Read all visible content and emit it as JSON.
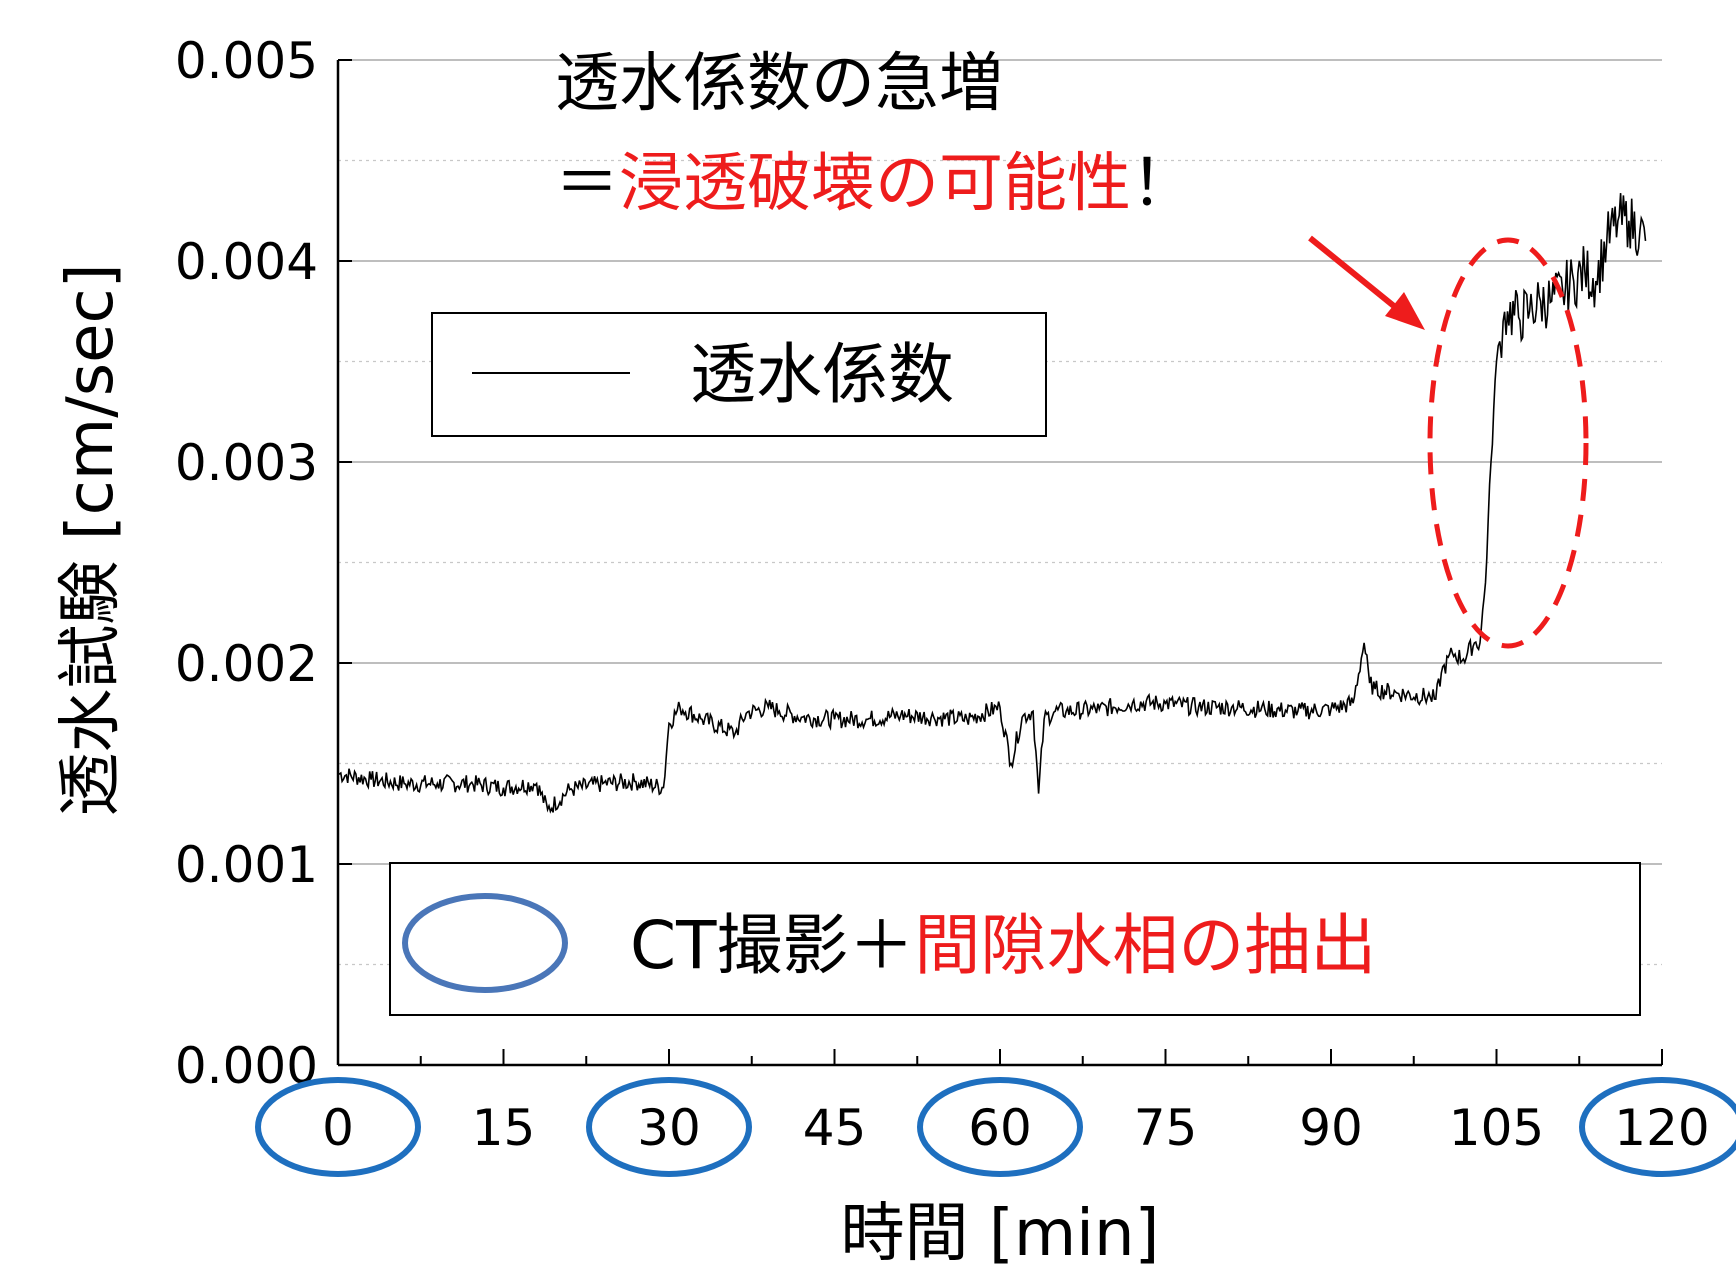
{
  "chart_data": {
    "type": "line",
    "xlabel": "時間 [min]",
    "ylabel": "透水試験 [cm/sec]",
    "xlim": [
      0,
      120
    ],
    "ylim": [
      0,
      0.005
    ],
    "x_ticks": [
      "0",
      "15",
      "30",
      "45",
      "60",
      "75",
      "90",
      "105",
      "120"
    ],
    "y_ticks": [
      "0.000",
      "0.001",
      "0.002",
      "0.003",
      "0.004",
      "0.005"
    ],
    "grid": "horizontal",
    "legend": {
      "position": "top-left",
      "entries": [
        "透水係数"
      ]
    },
    "series": [
      {
        "name": "透水係数",
        "color": "#000000",
        "x": [
          0,
          3,
          6,
          9,
          12,
          15,
          18,
          19,
          21,
          24,
          27,
          29.5,
          30,
          31,
          33,
          36,
          37,
          39,
          40,
          42,
          45,
          48,
          51,
          54,
          57,
          60,
          61,
          62,
          63,
          63.5,
          64,
          65,
          66,
          69,
          72,
          75,
          78,
          81,
          84,
          87,
          90,
          92,
          93,
          93.5,
          94,
          96,
          99,
          99.5,
          100,
          101,
          102,
          103,
          103.5,
          104,
          104.5,
          105,
          105.3,
          105.6,
          106,
          107,
          108,
          109,
          110,
          111,
          112,
          113,
          114,
          115,
          116,
          117,
          118,
          118.5
        ],
        "y": [
          0.00145,
          0.00142,
          0.0014,
          0.0014,
          0.0014,
          0.00138,
          0.0014,
          0.00127,
          0.00137,
          0.0014,
          0.00141,
          0.00138,
          0.0017,
          0.00178,
          0.00172,
          0.00165,
          0.00175,
          0.00178,
          0.00176,
          0.00173,
          0.00172,
          0.00172,
          0.00174,
          0.00173,
          0.00172,
          0.00178,
          0.0015,
          0.00173,
          0.00176,
          0.00135,
          0.00172,
          0.00176,
          0.00176,
          0.00177,
          0.0018,
          0.0018,
          0.00178,
          0.00178,
          0.00177,
          0.00176,
          0.00177,
          0.0018,
          0.0021,
          0.0019,
          0.00187,
          0.00185,
          0.00183,
          0.00182,
          0.00195,
          0.00205,
          0.00202,
          0.0021,
          0.0021,
          0.0024,
          0.003,
          0.0035,
          0.0036,
          0.0037,
          0.00375,
          0.00372,
          0.00375,
          0.0038,
          0.0038,
          0.00385,
          0.0039,
          0.00395,
          0.0039,
          0.0041,
          0.0042,
          0.0042,
          0.00415,
          0.0041
        ]
      }
    ],
    "annotations": {
      "title_line1": "透水係数の急増",
      "title_line2_prefix": "＝",
      "title_line2_red": "浸透破壊の可能性",
      "title_line2_suffix": "！",
      "legend2_label_black": "CT撮影＋",
      "legend2_label_red": "間隙水相の抽出",
      "circled_ticks": [
        "0",
        "30",
        "60",
        "120"
      ]
    }
  }
}
